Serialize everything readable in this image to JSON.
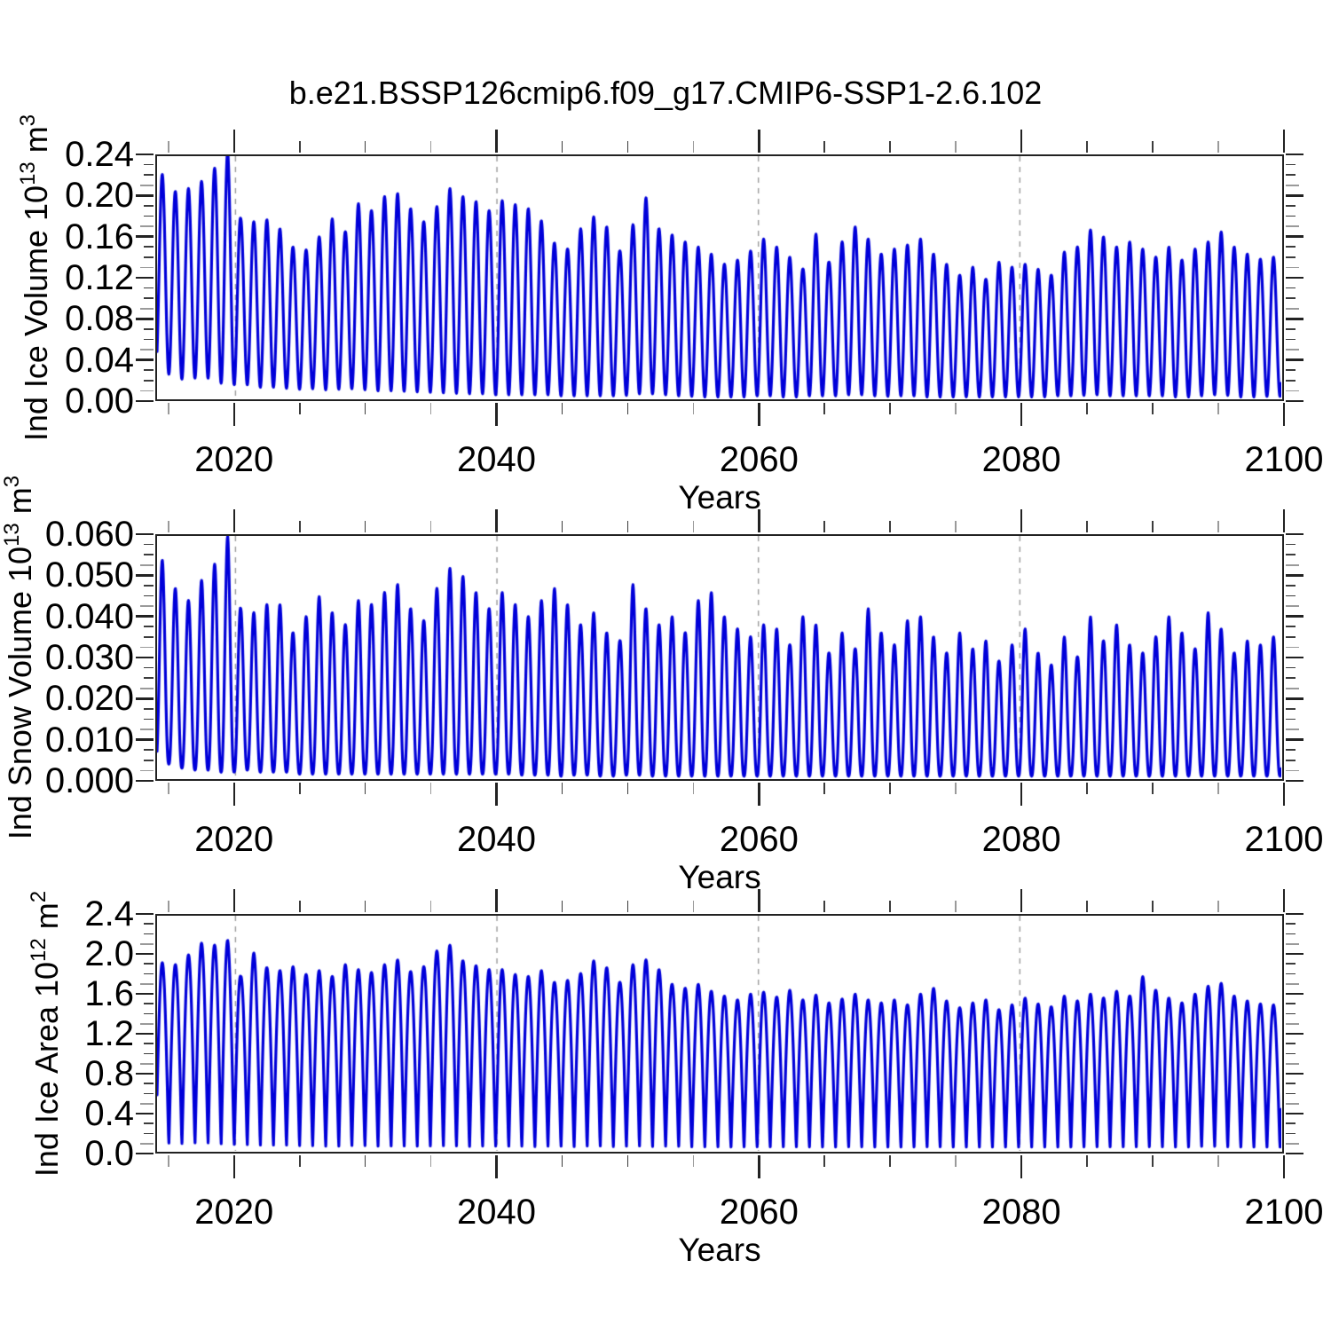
{
  "title": "b.e21.BSSP126cmip6.f09_g17.CMIP6-SSP1-2.6.102",
  "colors": {
    "line": "#0000d9",
    "spine": "#222222",
    "grid_dashed": "#999999",
    "minor_tick": "#3c3c3c",
    "minor_tick_alt": "#9a9a9a"
  },
  "chart_data": [
    {
      "type": "line",
      "name": "ind-ice-volume",
      "title": "",
      "xlabel": "Years",
      "ylabel_full": "Ind Ice Volume 10^13 m^3",
      "ylabel": {
        "pre": "Ind Ice Volume 10",
        "exp": "13",
        "unit": " m",
        "unit_exp": "3"
      },
      "x_range": [
        2014,
        2100
      ],
      "y_range": [
        0,
        0.24
      ],
      "y_major_step": 0.04,
      "y_minor_step": 0.01,
      "y_tick_labels": [
        "0.00",
        "0.04",
        "0.08",
        "0.12",
        "0.16",
        "0.20",
        "0.24"
      ],
      "y_tick_decimals": 2,
      "x_major_ticks": [
        2020,
        2040,
        2060,
        2080,
        2100
      ],
      "x_tick_labels": [
        "2020",
        "2040",
        "2060",
        "2080",
        "2100"
      ],
      "x_minor_step": 5,
      "grid_vertical_dashed_at": [
        2020,
        2040,
        2060,
        2080
      ],
      "legend_position": "none",
      "series": [
        {
          "name": "Ind Ice Volume",
          "color": "#0000d9",
          "start_year": 2014,
          "seasonal_model": {
            "samples_per_year": 32,
            "peak_phase": 0.4,
            "shape_exponent": 1.0
          },
          "annual_peaks": [
            0.222,
            0.205,
            0.208,
            0.215,
            0.228,
            0.245,
            0.178,
            0.175,
            0.177,
            0.168,
            0.15,
            0.147,
            0.16,
            0.178,
            0.165,
            0.193,
            0.186,
            0.2,
            0.203,
            0.188,
            0.175,
            0.19,
            0.208,
            0.2,
            0.195,
            0.186,
            0.196,
            0.192,
            0.188,
            0.176,
            0.154,
            0.148,
            0.168,
            0.18,
            0.17,
            0.146,
            0.172,
            0.199,
            0.168,
            0.162,
            0.155,
            0.15,
            0.143,
            0.133,
            0.137,
            0.146,
            0.158,
            0.15,
            0.14,
            0.128,
            0.163,
            0.135,
            0.155,
            0.17,
            0.158,
            0.143,
            0.148,
            0.152,
            0.158,
            0.143,
            0.133,
            0.122,
            0.13,
            0.118,
            0.135,
            0.13,
            0.133,
            0.128,
            0.122,
            0.145,
            0.15,
            0.167,
            0.16,
            0.15,
            0.155,
            0.148,
            0.14,
            0.15,
            0.137,
            0.148,
            0.155,
            0.165,
            0.15,
            0.143,
            0.138,
            0.14
          ],
          "annual_troughs": [
            0.028,
            0.02,
            0.018,
            0.022,
            0.018,
            0.012,
            0.015,
            0.012,
            0.01,
            0.012,
            0.008,
            0.01,
            0.009,
            0.008,
            0.01,
            0.009,
            0.008,
            0.007,
            0.008,
            0.006,
            0.007,
            0.005,
            0.006,
            0.004,
            0.005,
            0.004,
            0.003,
            0.004,
            0.003,
            0.004,
            0.003,
            0.002,
            0.003,
            0.002,
            0.003,
            0.002,
            0.004,
            0.005,
            0.004,
            0.003,
            0.002,
            0.002,
            0.001,
            0.002,
            0.001,
            0.002,
            0.003,
            0.002,
            0.001,
            0.002,
            0.003,
            0.002,
            0.003,
            0.004,
            0.003,
            0.002,
            0.002,
            0.003,
            0.002,
            0.001,
            0.002,
            0.001,
            0.002,
            0.001,
            0.002,
            0.001,
            0.002,
            0.001,
            0.002,
            0.003,
            0.002,
            0.004,
            0.003,
            0.002,
            0.003,
            0.002,
            0.003,
            0.002,
            0.001,
            0.002,
            0.003,
            0.004,
            0.002,
            0.001,
            0.002,
            0.002
          ]
        }
      ]
    },
    {
      "type": "line",
      "name": "ind-snow-volume",
      "title": "",
      "xlabel": "Years",
      "ylabel_full": "Ind Snow Volume 10^13 m^3",
      "ylabel": {
        "pre": "Ind Snow Volume 10",
        "exp": "13",
        "unit": " m",
        "unit_exp": "3"
      },
      "x_range": [
        2014,
        2100
      ],
      "y_range": [
        0,
        0.06
      ],
      "y_major_step": 0.01,
      "y_minor_step": 0.0025,
      "y_tick_labels": [
        "0.000",
        "0.010",
        "0.020",
        "0.030",
        "0.040",
        "0.050",
        "0.060"
      ],
      "y_tick_decimals": 3,
      "x_major_ticks": [
        2020,
        2040,
        2060,
        2080,
        2100
      ],
      "x_tick_labels": [
        "2020",
        "2040",
        "2060",
        "2080",
        "2100"
      ],
      "x_minor_step": 5,
      "grid_vertical_dashed_at": [
        2020,
        2040,
        2060,
        2080
      ],
      "legend_position": "none",
      "series": [
        {
          "name": "Ind Snow Volume",
          "color": "#0000d9",
          "start_year": 2014,
          "seasonal_model": {
            "samples_per_year": 32,
            "peak_phase": 0.4,
            "shape_exponent": 1.25
          },
          "annual_peaks": [
            0.054,
            0.047,
            0.044,
            0.049,
            0.053,
            0.06,
            0.042,
            0.041,
            0.043,
            0.043,
            0.036,
            0.04,
            0.045,
            0.041,
            0.038,
            0.044,
            0.043,
            0.046,
            0.048,
            0.042,
            0.039,
            0.047,
            0.052,
            0.05,
            0.046,
            0.042,
            0.046,
            0.043,
            0.04,
            0.044,
            0.047,
            0.043,
            0.038,
            0.041,
            0.036,
            0.034,
            0.048,
            0.042,
            0.038,
            0.04,
            0.036,
            0.044,
            0.046,
            0.04,
            0.037,
            0.035,
            0.038,
            0.037,
            0.033,
            0.04,
            0.038,
            0.031,
            0.036,
            0.032,
            0.042,
            0.036,
            0.033,
            0.039,
            0.04,
            0.035,
            0.031,
            0.036,
            0.032,
            0.034,
            0.029,
            0.033,
            0.037,
            0.031,
            0.028,
            0.035,
            0.03,
            0.04,
            0.034,
            0.038,
            0.033,
            0.031,
            0.035,
            0.04,
            0.036,
            0.032,
            0.041,
            0.037,
            0.031,
            0.034,
            0.033,
            0.035
          ],
          "annual_troughs": [
            0.004,
            0.003,
            0.002,
            0.002,
            0.002,
            0.001,
            0.002,
            0.002,
            0.001,
            0.002,
            0.001,
            0.001,
            0.001,
            0.001,
            0.001,
            0.001,
            0.001,
            0.001,
            0.001,
            0.001,
            0.001,
            0.001,
            0.001,
            0.001,
            0.001,
            0.001,
            0.001,
            0.001,
            0.0005,
            0.001,
            0.0005,
            0.0005,
            0.001,
            0.0005,
            0.0005,
            0.0005,
            0.001,
            0.0005,
            0.0005,
            0.0005,
            0.0005,
            0.0005,
            0.0005,
            0.0005,
            0.0005,
            0.0005,
            0.0005,
            0.0005,
            0.0005,
            0.0005,
            0.0005,
            0.0005,
            0.0005,
            0.0005,
            0.0005,
            0.0005,
            0.0005,
            0.0005,
            0.0005,
            0.0005,
            0.0005,
            0.0005,
            0.0005,
            0.0005,
            0.0005,
            0.0005,
            0.0005,
            0.0005,
            0.0005,
            0.0005,
            0.0005,
            0.0005,
            0.0005,
            0.0005,
            0.0005,
            0.0005,
            0.0005,
            0.0005,
            0.0005,
            0.0005,
            0.0005,
            0.0005,
            0.0005,
            0.0005,
            0.0005,
            0.0005
          ]
        }
      ]
    },
    {
      "type": "line",
      "name": "ind-ice-area",
      "title": "",
      "xlabel": "Years",
      "ylabel_full": "Ind Ice Area 10^12 m^2",
      "ylabel": {
        "pre": "Ind Ice Area 10",
        "exp": "12",
        "unit": " m",
        "unit_exp": "2"
      },
      "x_range": [
        2014,
        2100
      ],
      "y_range": [
        0,
        2.4
      ],
      "y_major_step": 0.4,
      "y_minor_step": 0.1,
      "y_tick_labels": [
        "0.0",
        "0.4",
        "0.8",
        "1.2",
        "1.6",
        "2.0",
        "2.4"
      ],
      "y_tick_decimals": 1,
      "x_major_ticks": [
        2020,
        2040,
        2060,
        2080,
        2100
      ],
      "x_tick_labels": [
        "2020",
        "2040",
        "2060",
        "2080",
        "2100"
      ],
      "x_minor_step": 5,
      "grid_vertical_dashed_at": [
        2020,
        2040,
        2060,
        2080
      ],
      "legend_position": "none",
      "series": [
        {
          "name": "Ind Ice Area",
          "color": "#0000d9",
          "start_year": 2014,
          "seasonal_model": {
            "samples_per_year": 32,
            "peak_phase": 0.4,
            "shape_exponent": 0.55
          },
          "annual_peaks": [
            1.92,
            1.9,
            2.0,
            2.12,
            2.1,
            2.15,
            1.78,
            2.02,
            1.87,
            1.84,
            1.88,
            1.8,
            1.84,
            1.78,
            1.9,
            1.85,
            1.82,
            1.9,
            1.95,
            1.83,
            1.88,
            2.04,
            2.1,
            1.94,
            1.89,
            1.85,
            1.85,
            1.8,
            1.78,
            1.84,
            1.72,
            1.74,
            1.81,
            1.94,
            1.87,
            1.72,
            1.9,
            1.95,
            1.85,
            1.7,
            1.66,
            1.7,
            1.63,
            1.58,
            1.54,
            1.6,
            1.62,
            1.57,
            1.64,
            1.54,
            1.59,
            1.51,
            1.55,
            1.6,
            1.54,
            1.51,
            1.54,
            1.49,
            1.6,
            1.66,
            1.53,
            1.46,
            1.51,
            1.54,
            1.44,
            1.49,
            1.56,
            1.5,
            1.47,
            1.58,
            1.53,
            1.6,
            1.56,
            1.63,
            1.58,
            1.78,
            1.64,
            1.56,
            1.51,
            1.6,
            1.68,
            1.71,
            1.58,
            1.53,
            1.5,
            1.49
          ],
          "annual_troughs": [
            0.06,
            0.05,
            0.05,
            0.06,
            0.05,
            0.04,
            0.04,
            0.04,
            0.03,
            0.04,
            0.03,
            0.03,
            0.03,
            0.02,
            0.03,
            0.03,
            0.03,
            0.02,
            0.03,
            0.02,
            0.03,
            0.02,
            0.03,
            0.02,
            0.02,
            0.03,
            0.02,
            0.03,
            0.02,
            0.02,
            0.03,
            0.02,
            0.02,
            0.03,
            0.02,
            0.02,
            0.03,
            0.02,
            0.02,
            0.03,
            0.02,
            0.02,
            0.02,
            0.02,
            0.02,
            0.02,
            0.02,
            0.02,
            0.02,
            0.02,
            0.02,
            0.02,
            0.02,
            0.02,
            0.02,
            0.02,
            0.02,
            0.02,
            0.02,
            0.02,
            0.02,
            0.02,
            0.02,
            0.02,
            0.02,
            0.02,
            0.02,
            0.02,
            0.02,
            0.02,
            0.02,
            0.02,
            0.02,
            0.02,
            0.02,
            0.02,
            0.02,
            0.02,
            0.02,
            0.02,
            0.03,
            0.02,
            0.02,
            0.02,
            0.02,
            0.02
          ]
        }
      ]
    }
  ]
}
